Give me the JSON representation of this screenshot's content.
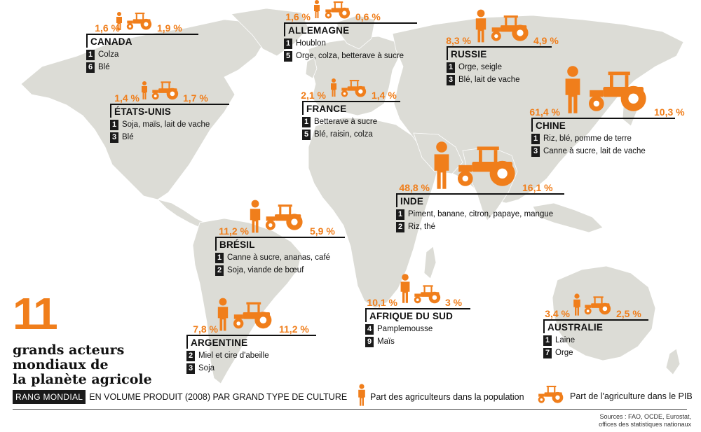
{
  "accent_color": "#f07e1b",
  "map_color": "#dcdcd6",
  "title": {
    "big_number": "11",
    "lines": [
      "grands acteurs",
      "mondiaux de",
      "la planète agricole"
    ]
  },
  "rank_legend": {
    "badge": "RANG MONDIAL",
    "text": "EN VOLUME PRODUIT (2008) PAR GRAND TYPE DE CULTURE"
  },
  "legend": {
    "farmer_icon": "farmer-icon",
    "farmer_label": "Part des agriculteurs dans la population",
    "tractor_icon": "tractor-icon",
    "tractor_label": "Part de l'agriculture dans le PIB"
  },
  "sources": [
    "Sources : FAO, OCDE, Eurostat,",
    "offices des statistiques nationaux"
  ],
  "countries": [
    {
      "name": "CANADA",
      "pop": "1,6 %",
      "gdp": "1,9 %",
      "ranks": [
        {
          "rank": "1",
          "crop": "Colza"
        },
        {
          "rank": "6",
          "crop": "Blé"
        }
      ]
    },
    {
      "name": "ÉTATS-UNIS",
      "pop": "1,4 %",
      "gdp": "1,7 %",
      "ranks": [
        {
          "rank": "1",
          "crop": "Soja, maïs, lait de vache"
        },
        {
          "rank": "3",
          "crop": "Blé"
        }
      ]
    },
    {
      "name": "ALLEMAGNE",
      "pop": "1,6 %",
      "gdp": "0,6 %",
      "ranks": [
        {
          "rank": "1",
          "crop": "Houblon"
        },
        {
          "rank": "5",
          "crop": "Orge, colza, betterave à sucre"
        }
      ]
    },
    {
      "name": "FRANCE",
      "pop": "2,1 %",
      "gdp": "1,4 %",
      "ranks": [
        {
          "rank": "1",
          "crop": "Betterave à sucre"
        },
        {
          "rank": "5",
          "crop": "Blé, raisin, colza"
        }
      ]
    },
    {
      "name": "RUSSIE",
      "pop": "8,3 %",
      "gdp": "4,9 %",
      "ranks": [
        {
          "rank": "1",
          "crop": "Orge, seigle"
        },
        {
          "rank": "3",
          "crop": "Blé, lait de vache"
        }
      ]
    },
    {
      "name": "CHINE",
      "pop": "61,4 %",
      "gdp": "10,3 %",
      "ranks": [
        {
          "rank": "1",
          "crop": "Riz, blé, pomme de terre"
        },
        {
          "rank": "3",
          "crop": "Canne à sucre, lait de vache"
        }
      ]
    },
    {
      "name": "INDE",
      "pop": "48,8 %",
      "gdp": "16,1 %",
      "ranks": [
        {
          "rank": "1",
          "crop": "Piment, banane, citron, papaye, mangue"
        },
        {
          "rank": "2",
          "crop": "Riz, thé"
        }
      ]
    },
    {
      "name": "BRÉSIL",
      "pop": "11,2 %",
      "gdp": "5,9 %",
      "ranks": [
        {
          "rank": "1",
          "crop": "Canne à sucre, ananas, café"
        },
        {
          "rank": "2",
          "crop": "Soja, viande de bœuf"
        }
      ]
    },
    {
      "name": "ARGENTINE",
      "pop": "7,8 %",
      "gdp": "11,2 %",
      "ranks": [
        {
          "rank": "2",
          "crop": "Miel et cire d'abeille"
        },
        {
          "rank": "3",
          "crop": "Soja"
        }
      ]
    },
    {
      "name": "AFRIQUE DU SUD",
      "pop": "10,1 %",
      "gdp": "3 %",
      "ranks": [
        {
          "rank": "4",
          "crop": "Pamplemousse"
        },
        {
          "rank": "9",
          "crop": "Maïs"
        }
      ]
    },
    {
      "name": "AUSTRALIE",
      "pop": "3,4 %",
      "gdp": "2,5 %",
      "ranks": [
        {
          "rank": "1",
          "crop": "Laine"
        },
        {
          "rank": "7",
          "crop": "Orge"
        }
      ]
    }
  ]
}
